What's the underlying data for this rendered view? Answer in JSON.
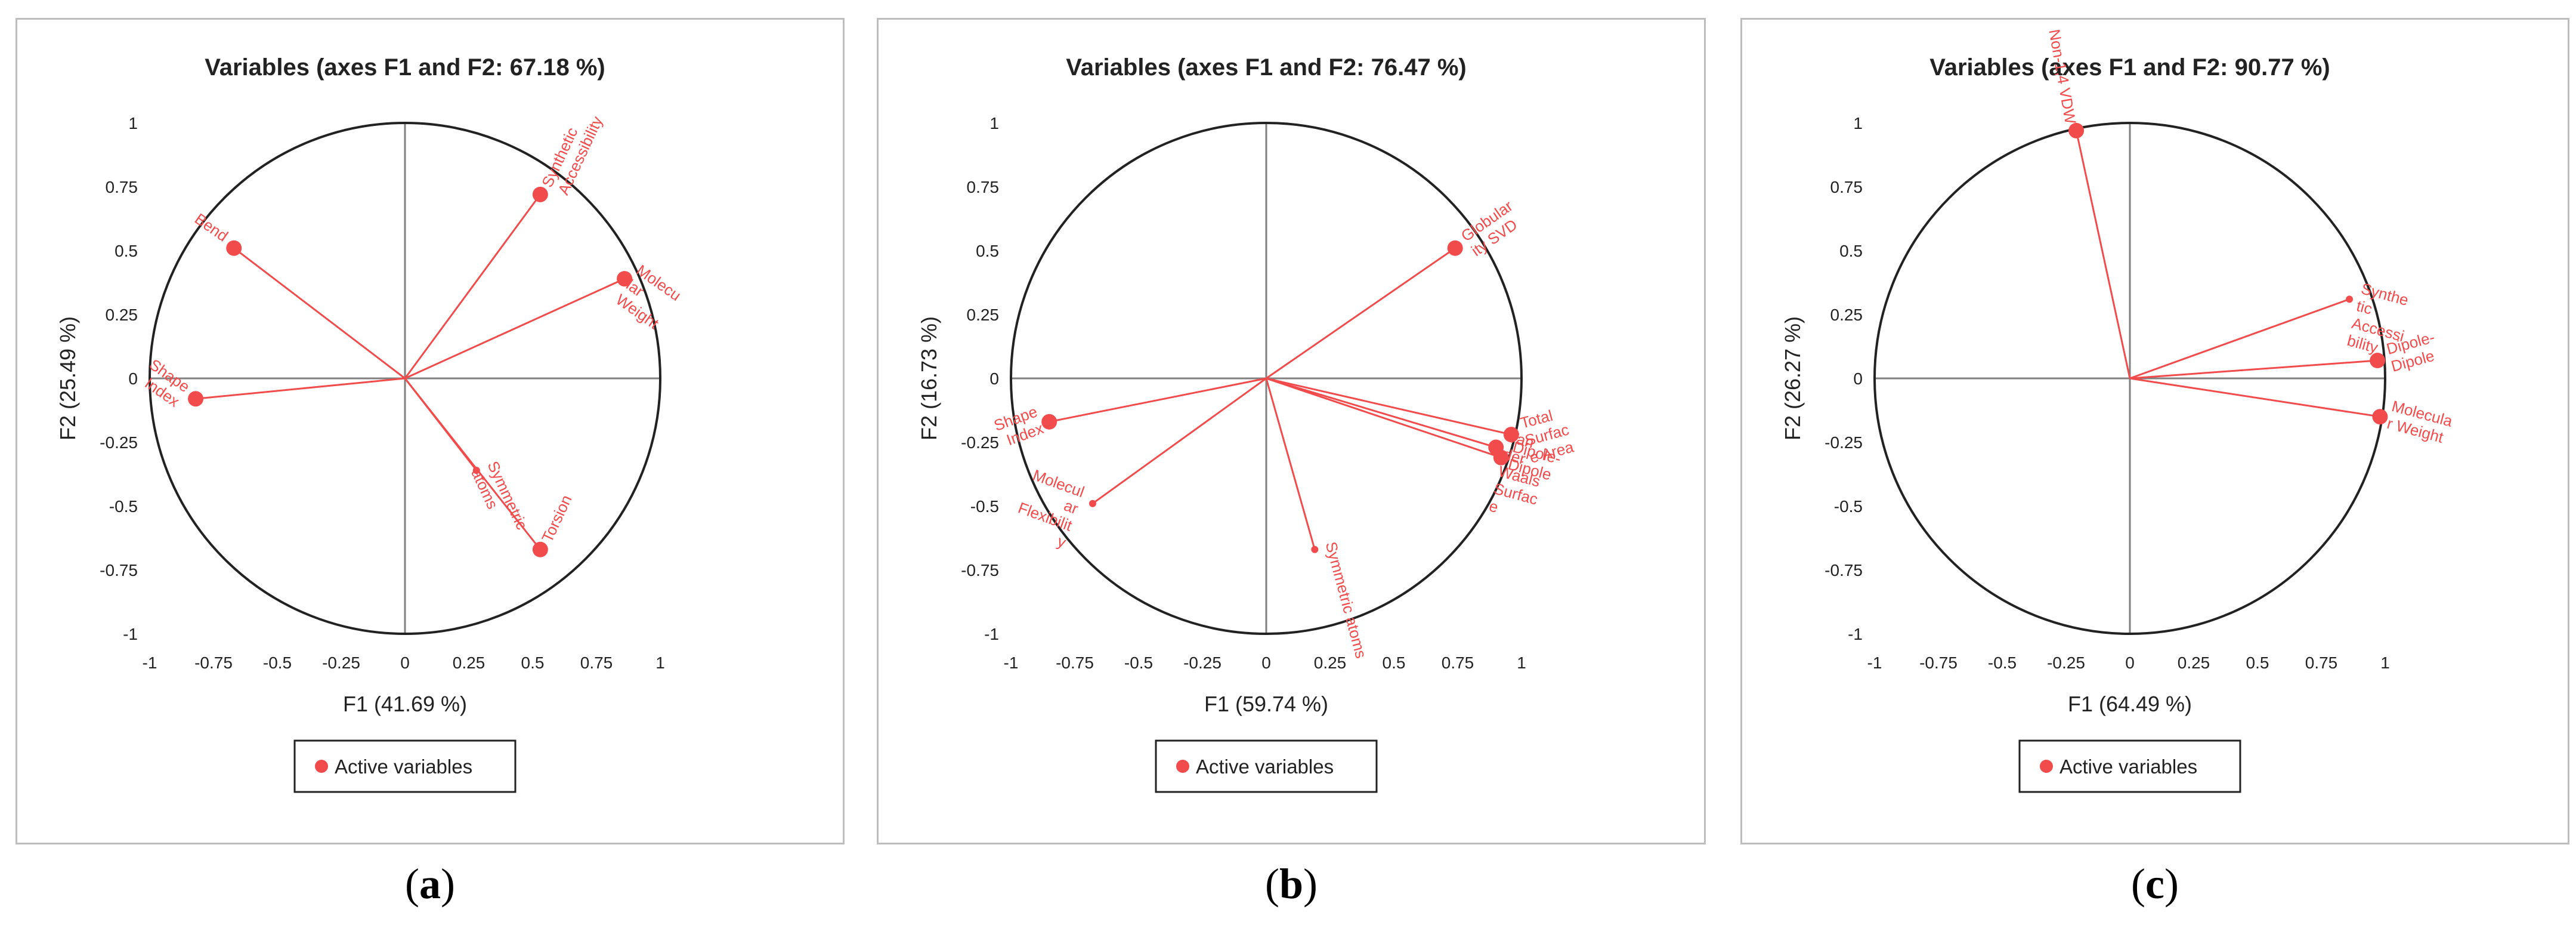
{
  "colors": {
    "accent": "#f24b4b",
    "axis": "#808080",
    "text": "#222222",
    "circle": "#222222"
  },
  "legend_label": "Active variables",
  "panels": [
    {
      "caption": "a",
      "chart_data": {
        "type": "scatter",
        "title": "Variables (axes F1 and F2: 67.18 %)",
        "xlabel": "F1 (41.69 %)",
        "ylabel": "F2 (25.49 %)",
        "xlim": [
          -1,
          1
        ],
        "ylim": [
          -1,
          1
        ],
        "ticks": [
          "-1",
          "-0.75",
          "-0.5",
          "-0.25",
          "0",
          "0.25",
          "0.5",
          "0.75",
          "1"
        ],
        "series": [
          {
            "name": "Active variables",
            "points": [
              {
                "label": "Bend",
                "x": -0.67,
                "y": 0.51,
                "size": "large"
              },
              {
                "label": "Synthetic Accessibility",
                "x": 0.53,
                "y": 0.72,
                "size": "large"
              },
              {
                "label": "Molecular Weight",
                "x": 0.86,
                "y": 0.39,
                "size": "large"
              },
              {
                "label": "Shape Index",
                "x": -0.82,
                "y": -0.08,
                "size": "large"
              },
              {
                "label": "Symmetric atoms",
                "x": 0.28,
                "y": -0.36,
                "size": "small"
              },
              {
                "label": "Torsion",
                "x": 0.53,
                "y": -0.67,
                "size": "large"
              }
            ]
          }
        ]
      },
      "label_lines": [
        {
          "lines": [
            "Bend"
          ],
          "rot": 35
        },
        {
          "lines": [
            "Synthetic",
            "Accessibility"
          ],
          "rot": -65
        },
        {
          "lines": [
            "Molecu",
            "lar",
            "Weight"
          ],
          "rot": 35
        },
        {
          "lines": [
            "Shape",
            "Index"
          ],
          "rot": 35
        },
        {
          "lines": [
            "Symmetric",
            "atoms"
          ],
          "rot": 65
        },
        {
          "lines": [
            "Torsion"
          ],
          "rot": -65
        }
      ]
    },
    {
      "caption": "b",
      "chart_data": {
        "type": "scatter",
        "title": "Variables (axes F1 and F2: 76.47 %)",
        "xlabel": "F1 (59.74 %)",
        "ylabel": "F2 (16.73 %)",
        "xlim": [
          -1,
          1
        ],
        "ylim": [
          -1,
          1
        ],
        "ticks": [
          "-1",
          "-0.75",
          "-0.5",
          "-0.25",
          "0",
          "0.25",
          "0.5",
          "0.75",
          "1"
        ],
        "series": [
          {
            "name": "Active variables",
            "points": [
              {
                "label": "Globularity SVD",
                "x": 0.74,
                "y": 0.51,
                "size": "large"
              },
              {
                "label": "Total Surface Area",
                "x": 0.96,
                "y": -0.22,
                "size": "large"
              },
              {
                "label": "Van der Waals Surface",
                "x": 0.9,
                "y": -0.27,
                "size": "large"
              },
              {
                "label": "Dipole-Dipole",
                "x": 0.92,
                "y": -0.31,
                "size": "large"
              },
              {
                "label": "Shape Index",
                "x": -0.85,
                "y": -0.17,
                "size": "large"
              },
              {
                "label": "Molecular Flexibility",
                "x": -0.68,
                "y": -0.49,
                "size": "small"
              },
              {
                "label": "Symmetric atoms",
                "x": 0.19,
                "y": -0.67,
                "size": "small"
              }
            ]
          }
        ]
      },
      "label_lines": [
        {
          "lines": [
            "Globular",
            "ity SVD"
          ],
          "rot": -35
        },
        {
          "lines": [
            "Total",
            "Surfac",
            "e Area"
          ],
          "rot": -15
        },
        {
          "lines": [
            "Van",
            "der",
            "Waals",
            "Surfac",
            "e"
          ],
          "rot": 15
        },
        {
          "lines": [
            "Dipole-",
            "Dipole"
          ],
          "rot": 15
        },
        {
          "lines": [
            "Shape",
            "Index"
          ],
          "rot": -20
        },
        {
          "lines": [
            "Molecul",
            "ar",
            "Flexibilit",
            "y"
          ],
          "rot": 20
        },
        {
          "lines": [
            "Symmetric atoms"
          ],
          "rot": 75
        }
      ]
    },
    {
      "caption": "c",
      "chart_data": {
        "type": "scatter",
        "title": "Variables (axes F1 and F2: 90.77 %)",
        "xlabel": "F1 (64.49 %)",
        "ylabel": "F2 (26.27 %)",
        "xlim": [
          -1,
          1
        ],
        "ylim": [
          -1,
          1
        ],
        "ticks": [
          "-1",
          "-0.75",
          "-0.5",
          "-0.25",
          "0",
          "0.25",
          "0.5",
          "0.75",
          "1"
        ],
        "series": [
          {
            "name": "Active variables",
            "points": [
              {
                "label": "Non-1,4 VDW",
                "x": -0.21,
                "y": 0.97,
                "size": "large"
              },
              {
                "label": "Synthetic Accessibility",
                "x": 0.86,
                "y": 0.31,
                "size": "small"
              },
              {
                "label": "Dipole-Dipole",
                "x": 0.97,
                "y": 0.07,
                "size": "large"
              },
              {
                "label": "Molecular Weight",
                "x": 0.98,
                "y": -0.15,
                "size": "large"
              }
            ]
          }
        ]
      },
      "label_lines": [
        {
          "lines": [
            "Non-1,4 VDW"
          ],
          "rot": 80
        },
        {
          "lines": [
            "Synthe",
            "tic",
            "Accessi",
            "bility"
          ],
          "rot": 15
        },
        {
          "lines": [
            "Dipole-",
            "Dipole"
          ],
          "rot": -15
        },
        {
          "lines": [
            "Molecula",
            "r Weight"
          ],
          "rot": 15
        }
      ]
    }
  ]
}
